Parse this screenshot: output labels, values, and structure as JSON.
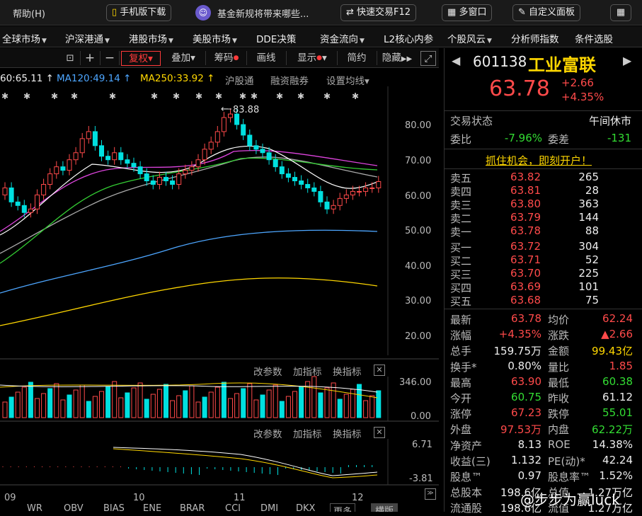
{
  "topbar": {
    "help": "帮助(H)",
    "mobile": "手机版下载",
    "news": "基金新规将带来哪些...",
    "quick": "快速交易F12",
    "multi": "多窗口",
    "custom": "自定义面板"
  },
  "menu": [
    "全球市场",
    "沪深港通",
    "港股市场",
    "美股市场",
    "DDE决策",
    "资金流向",
    "L2核心内参",
    "个股风云",
    "分析师指数",
    "条件选股"
  ],
  "toolbar": {
    "fuquan": "复权",
    "diejia": "叠加",
    "chouma": "筹码",
    "huaxian": "画线",
    "xianshi": "显示",
    "jianjia": "简约",
    "yincang": "隐藏"
  },
  "ma": {
    "ma60": "60:65.11",
    "ma120": "MA120:49.14",
    "ma250": "MA250:33.92",
    "hgt": "沪股通",
    "rzrq": "融资融券",
    "setma": "设置均线"
  },
  "chart": {
    "peak_label": "83.88",
    "yticks": [
      "80.00",
      "70.00",
      "60.00",
      "50.00",
      "40.00",
      "30.00",
      "20.00"
    ],
    "vol_ticks": [
      "346.00",
      "0.00"
    ],
    "macd_ticks": [
      "6.71",
      "-3.81"
    ],
    "xlabels": [
      "09",
      "10",
      "11",
      "12"
    ]
  },
  "panel": {
    "gaicanshu": "改参数",
    "jiazhibiao": "加指标",
    "huanzhibiao": "换指标"
  },
  "bottom_tabs": [
    "WR",
    "OBV",
    "BIAS",
    "ENE",
    "BRAR",
    "CCI",
    "DMI",
    "DKX",
    "更多",
    "横版"
  ],
  "quote": {
    "code": "601138",
    "name": "工业富联",
    "price": "63.78",
    "change": "+2.66",
    "pct": "+4.35%",
    "status_lbl": "交易状态",
    "status_val": "午间休市",
    "weibi_lbl": "委比",
    "weibi": "-7.96%",
    "weicha_lbl": "委差",
    "weicha": "-131",
    "promo": "抓住机会，即刻开户！",
    "sells": [
      {
        "l": "卖五",
        "p": "63.82",
        "v": "265"
      },
      {
        "l": "卖四",
        "p": "63.81",
        "v": "28"
      },
      {
        "l": "卖三",
        "p": "63.80",
        "v": "363"
      },
      {
        "l": "卖二",
        "p": "63.79",
        "v": "144"
      },
      {
        "l": "卖一",
        "p": "63.78",
        "v": "88"
      }
    ],
    "buys": [
      {
        "l": "买一",
        "p": "63.72",
        "v": "304"
      },
      {
        "l": "买二",
        "p": "63.71",
        "v": "52"
      },
      {
        "l": "买三",
        "p": "63.70",
        "v": "225"
      },
      {
        "l": "买四",
        "p": "63.69",
        "v": "101"
      },
      {
        "l": "买五",
        "p": "63.68",
        "v": "75"
      }
    ],
    "stats": [
      [
        {
          "l": "最新",
          "v": "63.78",
          "c": "up"
        },
        {
          "l": "均价",
          "v": "62.24",
          "c": "up"
        }
      ],
      [
        {
          "l": "涨幅",
          "v": "+4.35%",
          "c": "up"
        },
        {
          "l": "涨跌",
          "v": "▲2.66",
          "c": "up"
        }
      ],
      [
        {
          "l": "总手",
          "v": "159.75万",
          "c": "wh"
        },
        {
          "l": "金额",
          "v": "99.43亿",
          "c": "yl"
        }
      ],
      [
        {
          "l": "换手*",
          "v": "0.80%",
          "c": "wh"
        },
        {
          "l": "量比",
          "v": "1.85",
          "c": "up"
        }
      ],
      [
        {
          "l": "最高",
          "v": "63.90",
          "c": "up"
        },
        {
          "l": "最低",
          "v": "60.38",
          "c": "down"
        }
      ],
      [
        {
          "l": "今开",
          "v": "60.75",
          "c": "down"
        },
        {
          "l": "昨收",
          "v": "61.12",
          "c": "wh"
        }
      ],
      [
        {
          "l": "涨停",
          "v": "67.23",
          "c": "up"
        },
        {
          "l": "跌停",
          "v": "55.01",
          "c": "down"
        }
      ],
      [
        {
          "l": "外盘",
          "v": "97.53万",
          "c": "up"
        },
        {
          "l": "内盘",
          "v": "62.22万",
          "c": "down"
        }
      ],
      [
        {
          "l": "净资产",
          "v": "8.13",
          "c": "wh"
        },
        {
          "l": "ROE",
          "v": "14.38%",
          "c": "wh"
        }
      ],
      [
        {
          "l": "收益(三)",
          "v": "1.132",
          "c": "wh"
        },
        {
          "l": "PE(动)*",
          "v": "42.24",
          "c": "wh"
        }
      ],
      [
        {
          "l": "股息™",
          "v": "0.97",
          "c": "wh"
        },
        {
          "l": "股息率™",
          "v": "1.52%",
          "c": "wh"
        }
      ],
      [
        {
          "l": "总股本",
          "v": "198.6亿",
          "c": "wh"
        },
        {
          "l": "总值",
          "v": "1.27万亿",
          "c": "wh"
        }
      ],
      [
        {
          "l": "流通股",
          "v": "198.6亿",
          "c": "wh"
        },
        {
          "l": "流值",
          "v": "1.27万亿",
          "c": "wh"
        }
      ]
    ]
  },
  "watermark": "@步步为赢luck",
  "colors": {
    "up": "#ff4a4a",
    "down": "#33dd33",
    "accent": "#ff3a3a",
    "ma120": "#4da6ff",
    "ma250": "#ffd700"
  }
}
